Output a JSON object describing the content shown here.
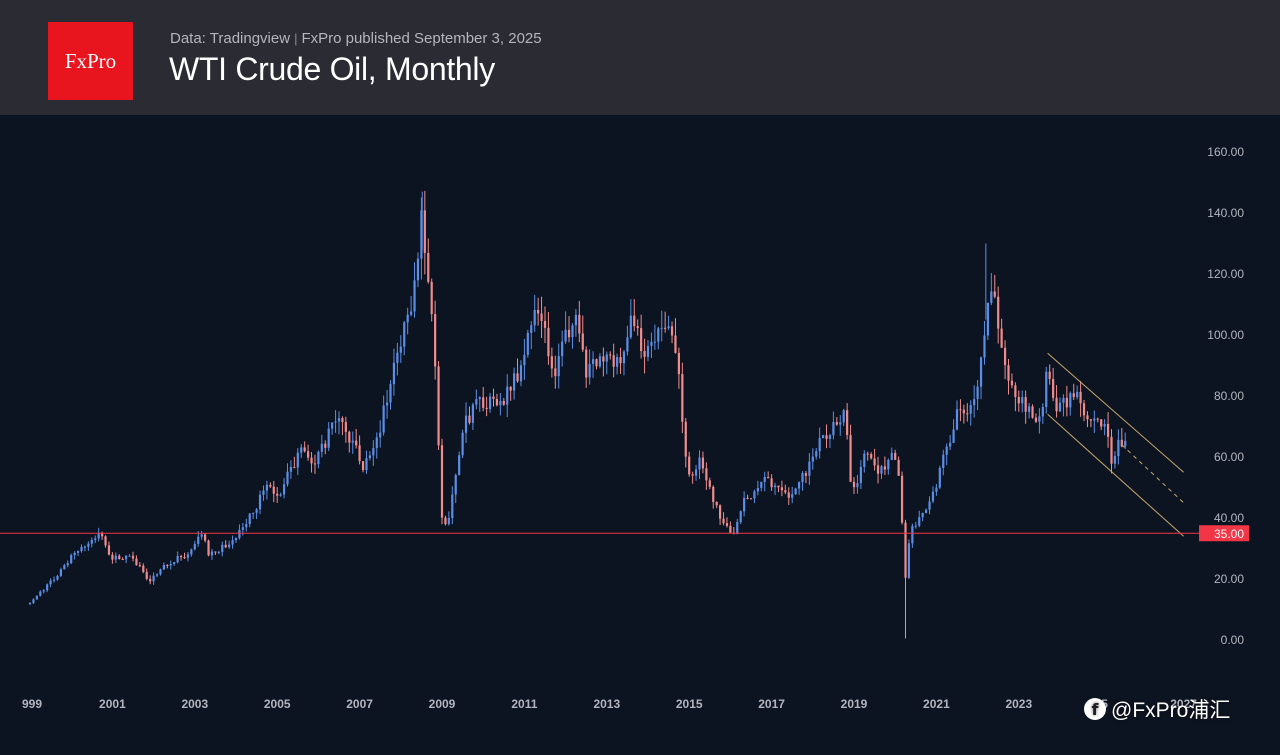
{
  "header": {
    "logo_text": "FxPro",
    "source_text": "Data: Tradingview",
    "separator": "|",
    "published_text": "FxPro published September 3, 2025",
    "title": "WTI Crude Oil, Monthly"
  },
  "watermark": {
    "icon": "facebook-like-logo-icon",
    "text": "@FxPro浦汇"
  },
  "chart_data": {
    "type": "candlestick",
    "title": "WTI Crude Oil, Monthly",
    "ylim": [
      -12,
      170
    ],
    "x_range": [
      1999.0,
      2027.2
    ],
    "y_ticks": [
      "0.00",
      "20.00",
      "40.00",
      "60.00",
      "80.00",
      "100.00",
      "120.00",
      "140.00",
      "160.00"
    ],
    "x_ticks": [
      {
        "year": 1999,
        "label": "999"
      },
      {
        "year": 2001,
        "label": "2001"
      },
      {
        "year": 2003,
        "label": "2003"
      },
      {
        "year": 2005,
        "label": "2005"
      },
      {
        "year": 2007,
        "label": "2007"
      },
      {
        "year": 2009,
        "label": "2009"
      },
      {
        "year": 2011,
        "label": "2011"
      },
      {
        "year": 2013,
        "label": "2013"
      },
      {
        "year": 2015,
        "label": "2015"
      },
      {
        "year": 2017,
        "label": "2017"
      },
      {
        "year": 2019,
        "label": "2019"
      },
      {
        "year": 2021,
        "label": "2021"
      },
      {
        "year": 2023,
        "label": "2023"
      },
      {
        "year": 2025,
        "label": "25"
      },
      {
        "year": 2027,
        "label": "2027"
      }
    ],
    "horizontal_line": {
      "value": 35.0,
      "label": "35.00",
      "color": "#f23645"
    },
    "channel": {
      "color": "#c8a86b",
      "upper": [
        [
          2023.7,
          94
        ],
        [
          2027.0,
          55
        ]
      ],
      "lower": [
        [
          2023.7,
          74
        ],
        [
          2027.0,
          34
        ]
      ],
      "mid_dashed": [
        [
          2025.5,
          64
        ],
        [
          2027.0,
          45
        ]
      ]
    },
    "colors": {
      "up": "#5b8ee6",
      "down": "#f18c8c",
      "grid": "#1a2232",
      "axis_text": "#b2b5be"
    },
    "price_path": [
      [
        1999.0,
        12
      ],
      [
        1999.5,
        19
      ],
      [
        2000.0,
        27
      ],
      [
        2000.3,
        30
      ],
      [
        2000.7,
        35
      ],
      [
        2000.95,
        27
      ],
      [
        2001.5,
        27
      ],
      [
        2001.9,
        19
      ],
      [
        2002.3,
        25
      ],
      [
        2002.8,
        28
      ],
      [
        2003.15,
        35
      ],
      [
        2003.35,
        28
      ],
      [
        2003.9,
        32
      ],
      [
        2004.5,
        44
      ],
      [
        2004.8,
        53
      ],
      [
        2005.0,
        46
      ],
      [
        2005.6,
        64
      ],
      [
        2005.9,
        58
      ],
      [
        2006.5,
        74
      ],
      [
        2006.95,
        61
      ],
      [
        2007.1,
        56
      ],
      [
        2007.4,
        65
      ],
      [
        2007.9,
        92
      ],
      [
        2008.3,
        112
      ],
      [
        2008.5,
        140
      ],
      [
        2008.8,
        100
      ],
      [
        2009.0,
        41
      ],
      [
        2009.15,
        38
      ],
      [
        2009.5,
        70
      ],
      [
        2009.9,
        79
      ],
      [
        2010.4,
        76
      ],
      [
        2010.9,
        89
      ],
      [
        2011.3,
        113
      ],
      [
        2011.7,
        86
      ],
      [
        2011.9,
        99
      ],
      [
        2012.3,
        105
      ],
      [
        2012.5,
        85
      ],
      [
        2012.7,
        92
      ],
      [
        2013.0,
        95
      ],
      [
        2013.3,
        90
      ],
      [
        2013.6,
        106
      ],
      [
        2013.9,
        93
      ],
      [
        2014.4,
        104
      ],
      [
        2014.6,
        98
      ],
      [
        2014.8,
        80
      ],
      [
        2014.95,
        53
      ],
      [
        2015.3,
        59
      ],
      [
        2015.6,
        45
      ],
      [
        2015.9,
        37
      ],
      [
        2016.05,
        33
      ],
      [
        2016.3,
        45
      ],
      [
        2016.6,
        48
      ],
      [
        2016.9,
        53
      ],
      [
        2017.4,
        46
      ],
      [
        2017.8,
        54
      ],
      [
        2018.1,
        63
      ],
      [
        2018.5,
        71
      ],
      [
        2018.8,
        74
      ],
      [
        2018.95,
        46
      ],
      [
        2019.3,
        64
      ],
      [
        2019.6,
        55
      ],
      [
        2019.95,
        61
      ],
      [
        2020.1,
        52
      ],
      [
        2020.25,
        20
      ],
      [
        2020.35,
        35
      ],
      [
        2020.6,
        40
      ],
      [
        2020.9,
        47
      ],
      [
        2021.2,
        61
      ],
      [
        2021.5,
        74
      ],
      [
        2021.9,
        75
      ],
      [
        2022.2,
        100
      ],
      [
        2022.3,
        114
      ],
      [
        2022.45,
        108
      ],
      [
        2022.7,
        87
      ],
      [
        2022.95,
        80
      ],
      [
        2023.2,
        75
      ],
      [
        2023.5,
        71
      ],
      [
        2023.7,
        90
      ],
      [
        2023.9,
        76
      ],
      [
        2024.2,
        78
      ],
      [
        2024.4,
        82
      ],
      [
        2024.7,
        69
      ],
      [
        2024.95,
        72
      ],
      [
        2025.1,
        72
      ],
      [
        2025.25,
        59
      ],
      [
        2025.45,
        65
      ],
      [
        2025.65,
        64
      ]
    ]
  }
}
